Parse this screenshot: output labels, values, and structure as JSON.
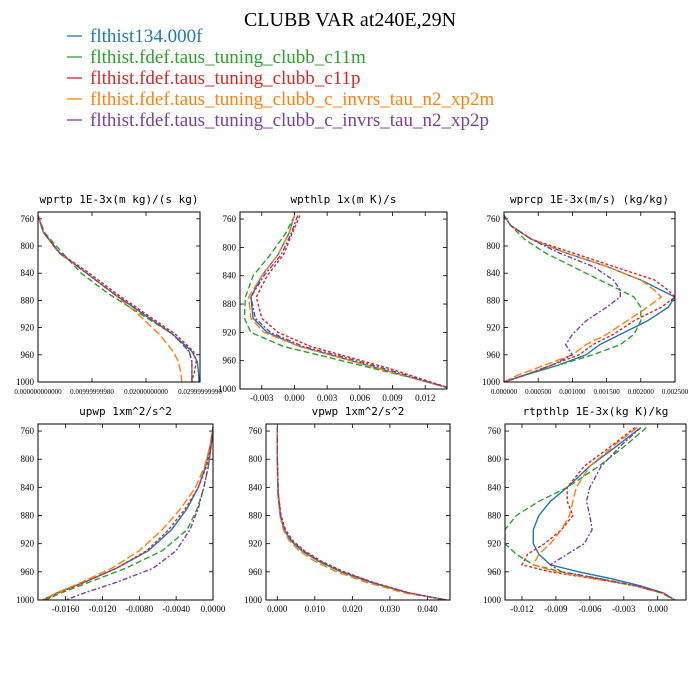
{
  "figure": {
    "title": "CLUBB VAR at240E,29N",
    "legend": [
      {
        "label": "flthist134.000f",
        "color": "#1f77b4"
      },
      {
        "label": "flthist.fdef.taus_tuning_clubb_c11m",
        "color": "#2ca02c"
      },
      {
        "label": "flthist.fdef.taus_tuning_clubb_c11p",
        "color": "#d62728"
      },
      {
        "label": "flthist.fdef.taus_tuning_clubb_c_invrs_tau_n2_xp2m",
        "color": "#ff7f0e"
      },
      {
        "label": "flthist.fdef.taus_tuning_clubb_c_invrs_tau_n2_xp2p",
        "color": "#7b3fa0"
      }
    ]
  },
  "chart_data": [
    {
      "type": "line",
      "title": "wprtp  1E-3x(m kg)/(s kg)",
      "xlim": [
        0,
        0.03
      ],
      "ylim": [
        1000,
        750
      ],
      "xticks": [
        0,
        0.01,
        0.02,
        0.03
      ],
      "xtick_labels": [
        "0.000000000000",
        "0.00999999980",
        "0.02000000000",
        "0.02999999990"
      ],
      "yticks": [
        760,
        800,
        840,
        880,
        920,
        960,
        1000
      ],
      "y": [
        755,
        780,
        810,
        840,
        870,
        900,
        930,
        955,
        970,
        985,
        995,
        1000
      ],
      "series": [
        {
          "values": [
            0.0,
            0.001,
            0.004,
            0.009,
            0.014,
            0.0195,
            0.025,
            0.0285,
            0.0295,
            0.0297,
            0.0298,
            0.0298
          ]
        },
        {
          "values": [
            0.0,
            0.0012,
            0.0045,
            0.008,
            0.013,
            0.019,
            0.025,
            0.028,
            0.0285,
            0.0285,
            0.0285,
            0.0285
          ]
        },
        {
          "values": [
            0.0,
            0.001,
            0.004,
            0.0095,
            0.0145,
            0.02,
            0.0255,
            0.0288,
            0.0293,
            0.029,
            0.0286,
            0.0285
          ]
        },
        {
          "values": [
            0.0,
            0.001,
            0.0038,
            0.009,
            0.014,
            0.0185,
            0.0225,
            0.025,
            0.026,
            0.0264,
            0.0266,
            0.0266
          ]
        },
        {
          "values": [
            0.0,
            0.001,
            0.004,
            0.009,
            0.014,
            0.0195,
            0.025,
            0.028,
            0.0285,
            0.0285,
            0.0285,
            0.0285
          ]
        }
      ]
    },
    {
      "type": "line",
      "title": "wpthlp  1x(m K)/s",
      "xlim": [
        -0.005,
        0.014
      ],
      "ylim": [
        1000,
        750
      ],
      "xticks": [
        -0.003,
        0.0,
        0.003,
        0.006,
        0.009,
        0.012
      ],
      "xtick_labels": [
        "-0.003",
        "0.000",
        "0.003",
        "0.006",
        "0.009",
        "0.012"
      ],
      "yticks": [
        760,
        800,
        840,
        880,
        920,
        960,
        1000
      ],
      "y": [
        755,
        780,
        810,
        840,
        870,
        900,
        920,
        940,
        955,
        970,
        985,
        1000
      ],
      "series": [
        {
          "values": [
            0.0,
            -0.0005,
            -0.0015,
            -0.003,
            -0.004,
            -0.0038,
            -0.0025,
            0.0005,
            0.004,
            0.0075,
            0.011,
            0.0145
          ]
        },
        {
          "values": [
            0.0,
            -0.0008,
            -0.0022,
            -0.0038,
            -0.0045,
            -0.0046,
            -0.004,
            -0.001,
            0.003,
            0.007,
            0.011,
            0.0145
          ]
        },
        {
          "values": [
            0.0005,
            -0.0002,
            -0.001,
            -0.0025,
            -0.0035,
            -0.003,
            -0.0015,
            0.0015,
            0.005,
            0.0085,
            0.0115,
            0.0145
          ]
        },
        {
          "values": [
            0.0,
            -0.0005,
            -0.0015,
            -0.003,
            -0.0042,
            -0.004,
            -0.0028,
            0.0005,
            0.004,
            0.0075,
            0.011,
            0.0145
          ]
        },
        {
          "values": [
            0.0003,
            -0.0003,
            -0.0012,
            -0.0028,
            -0.004,
            -0.0036,
            -0.0022,
            0.0008,
            0.0045,
            0.008,
            0.0112,
            0.0145
          ]
        }
      ]
    },
    {
      "type": "line",
      "title": "wprcp  1E-3x(m/s) (kg/kg)",
      "xlim": [
        0,
        0.0025
      ],
      "ylim": [
        1000,
        750
      ],
      "xticks": [
        0,
        0.0005,
        0.001,
        0.0015,
        0.002,
        0.0025
      ],
      "xtick_labels": [
        "0.000000",
        "0.000500",
        "0.001000",
        "0.001500",
        "0.002000",
        "0.002500"
      ],
      "yticks": [
        760,
        800,
        840,
        880,
        920,
        960,
        1000
      ],
      "y": [
        755,
        770,
        790,
        810,
        830,
        850,
        865,
        875,
        890,
        910,
        930,
        945,
        960,
        975,
        990,
        1000
      ],
      "series": [
        {
          "values": [
            0.0,
            0.0001,
            0.0004,
            0.0009,
            0.0015,
            0.002,
            0.0023,
            0.0025,
            0.0024,
            0.0021,
            0.0017,
            0.0014,
            0.0012,
            0.0008,
            0.0003,
            0.0
          ]
        },
        {
          "values": [
            0.0,
            0.0001,
            0.0003,
            0.0006,
            0.001,
            0.0014,
            0.0017,
            0.0019,
            0.002,
            0.002,
            0.0019,
            0.0017,
            0.0013,
            0.0008,
            0.0003,
            0.0
          ]
        },
        {
          "values": [
            0.0,
            0.0001,
            0.0004,
            0.001,
            0.0016,
            0.0022,
            0.0024,
            0.0025,
            0.0023,
            0.0019,
            0.0016,
            0.0013,
            0.0011,
            0.0007,
            0.0003,
            0.0
          ]
        },
        {
          "values": [
            0.0,
            0.0001,
            0.0004,
            0.0009,
            0.0015,
            0.002,
            0.0022,
            0.0023,
            0.0021,
            0.0018,
            0.0015,
            0.0012,
            0.001,
            0.0006,
            0.0002,
            0.0
          ]
        },
        {
          "values": [
            0.0,
            0.0001,
            0.0004,
            0.0008,
            0.0013,
            0.0016,
            0.0017,
            0.0017,
            0.0015,
            0.0012,
            0.001,
            0.0009,
            0.001,
            0.0007,
            0.0003,
            0.0
          ]
        }
      ]
    },
    {
      "type": "line",
      "title": "upwp  1xm^2/s^2",
      "xlim": [
        -0.019,
        0.0
      ],
      "ylim": [
        1000,
        750
      ],
      "xticks": [
        -0.016,
        -0.012,
        -0.008,
        -0.004,
        0.0
      ],
      "xtick_labels": [
        "-0.0160",
        "-0.0120",
        "-0.0080",
        "-0.0040",
        "0.0000"
      ],
      "yticks": [
        760,
        800,
        840,
        880,
        920,
        960,
        1000
      ],
      "y": [
        755,
        780,
        810,
        840,
        870,
        900,
        930,
        955,
        975,
        990,
        1000
      ],
      "series": [
        {
          "values": [
            0.0,
            -0.0003,
            -0.0008,
            -0.0016,
            -0.0028,
            -0.0045,
            -0.007,
            -0.0105,
            -0.014,
            -0.017,
            -0.0185
          ]
        },
        {
          "values": [
            0.0,
            -0.0002,
            -0.0005,
            -0.001,
            -0.0017,
            -0.0028,
            -0.0055,
            -0.0095,
            -0.0135,
            -0.0165,
            -0.0182
          ]
        },
        {
          "values": [
            0.0,
            -0.0002,
            -0.0007,
            -0.0016,
            -0.003,
            -0.0048,
            -0.0072,
            -0.0105,
            -0.014,
            -0.0168,
            -0.0183
          ]
        },
        {
          "values": [
            0.0,
            -0.0003,
            -0.0009,
            -0.0019,
            -0.0035,
            -0.0055,
            -0.008,
            -0.011,
            -0.0143,
            -0.017,
            -0.0185
          ]
        },
        {
          "values": [
            0.0,
            -0.0002,
            -0.0005,
            -0.001,
            -0.0016,
            -0.0025,
            -0.004,
            -0.0065,
            -0.0105,
            -0.014,
            -0.016
          ]
        }
      ]
    },
    {
      "type": "line",
      "title": "vpwp  1xm^2/s^2",
      "xlim": [
        -0.003,
        0.046
      ],
      "ylim": [
        1000,
        750
      ],
      "xticks": [
        0.0,
        0.01,
        0.02,
        0.03,
        0.04
      ],
      "xtick_labels": [
        "0.000",
        "0.010",
        "0.020",
        "0.030",
        "0.040"
      ],
      "yticks": [
        760,
        800,
        840,
        880,
        920,
        960,
        1000
      ],
      "y": [
        755,
        800,
        850,
        880,
        900,
        915,
        930,
        945,
        960,
        975,
        990,
        1000
      ],
      "series": [
        {
          "values": [
            0.0,
            0.0,
            0.0002,
            0.0008,
            0.0018,
            0.0035,
            0.0065,
            0.011,
            0.017,
            0.025,
            0.035,
            0.045
          ]
        },
        {
          "values": [
            0.0,
            0.0,
            0.0002,
            0.0008,
            0.0018,
            0.0035,
            0.0065,
            0.011,
            0.017,
            0.025,
            0.035,
            0.045
          ]
        },
        {
          "values": [
            0.0,
            0.0,
            0.0003,
            0.001,
            0.0022,
            0.004,
            0.0072,
            0.0118,
            0.0178,
            0.0256,
            0.0353,
            0.045
          ]
        },
        {
          "values": [
            0.0,
            0.0,
            0.0002,
            0.0007,
            0.0016,
            0.0031,
            0.0058,
            0.01,
            0.0158,
            0.0238,
            0.034,
            0.045
          ]
        },
        {
          "values": [
            0.0,
            0.0,
            0.0003,
            0.0009,
            0.002,
            0.0038,
            0.0068,
            0.0114,
            0.0174,
            0.0253,
            0.0351,
            0.045
          ]
        }
      ]
    },
    {
      "type": "line",
      "title": "rtpthlp  1E-3x(kg K)/kg",
      "xlim": [
        -0.0135,
        0.0025
      ],
      "ylim": [
        1000,
        750
      ],
      "xticks": [
        -0.012,
        -0.009,
        -0.006,
        -0.003,
        0.0
      ],
      "xtick_labels": [
        "-0.012",
        "-0.009",
        "-0.006",
        "-0.003",
        "0.000"
      ],
      "yticks": [
        760,
        800,
        840,
        880,
        920,
        960,
        1000
      ],
      "y": [
        755,
        780,
        810,
        840,
        860,
        880,
        900,
        920,
        935,
        950,
        960,
        970,
        980,
        990,
        1000
      ],
      "series": [
        {
          "values": [
            -0.0015,
            -0.0035,
            -0.006,
            -0.008,
            -0.0095,
            -0.0105,
            -0.011,
            -0.011,
            -0.0105,
            -0.0095,
            -0.007,
            -0.004,
            -0.0015,
            0.0005,
            0.0015
          ]
        },
        {
          "values": [
            -0.001,
            -0.0028,
            -0.0052,
            -0.008,
            -0.0105,
            -0.0125,
            -0.0135,
            -0.0135,
            -0.0125,
            -0.011,
            -0.0085,
            -0.005,
            -0.002,
            0.0003,
            0.0015
          ]
        },
        {
          "values": [
            -0.002,
            -0.004,
            -0.0065,
            -0.008,
            -0.008,
            -0.0075,
            -0.0085,
            -0.01,
            -0.0115,
            -0.012,
            -0.0095,
            -0.0055,
            -0.002,
            0.0005,
            0.0015
          ]
        },
        {
          "values": [
            -0.0018,
            -0.0038,
            -0.006,
            -0.0072,
            -0.0075,
            -0.0078,
            -0.0085,
            -0.0095,
            -0.0105,
            -0.011,
            -0.009,
            -0.0055,
            -0.002,
            0.0004,
            0.0015
          ]
        },
        {
          "values": [
            -0.0015,
            -0.0032,
            -0.005,
            -0.006,
            -0.0063,
            -0.006,
            -0.0058,
            -0.0065,
            -0.008,
            -0.0095,
            -0.0085,
            -0.005,
            -0.0018,
            0.0005,
            0.0015
          ]
        }
      ]
    }
  ]
}
